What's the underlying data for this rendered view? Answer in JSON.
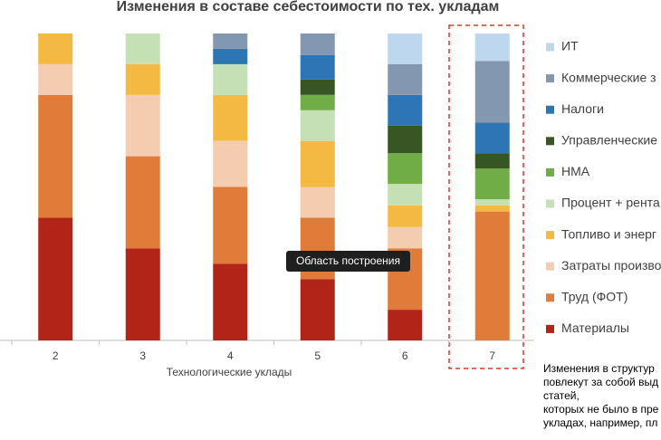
{
  "chart_data": {
    "type": "stacked_bar",
    "title": "Изменения в составе себестоимости по тех. укладам",
    "x_label": "Технологические уклады",
    "categories": [
      "2",
      "3",
      "4",
      "5",
      "6",
      "7"
    ],
    "ylim": [
      0,
      100
    ],
    "series": [
      {
        "name": "Материалы",
        "color": "#b22418",
        "values": [
          40,
          30,
          25,
          20,
          10,
          0
        ]
      },
      {
        "name": "Труд (ФОТ)",
        "color": "#e07b39",
        "values": [
          40,
          30,
          25,
          20,
          20,
          42
        ]
      },
      {
        "name": "Затраты произво",
        "color": "#f4ccb0",
        "values": [
          10,
          20,
          15,
          10,
          7,
          0
        ]
      },
      {
        "name": "Топливо и энерг",
        "color": "#f4b942",
        "values": [
          10,
          10,
          15,
          15,
          7,
          2
        ]
      },
      {
        "name": "Процент + рента",
        "color": "#c5e0b4",
        "values": [
          0,
          10,
          10,
          10,
          7,
          2
        ]
      },
      {
        "name": "НМА",
        "color": "#70ad47",
        "values": [
          0,
          0,
          0,
          5,
          10,
          10
        ]
      },
      {
        "name": "Управленческие",
        "color": "#375623",
        "values": [
          0,
          0,
          0,
          5,
          9,
          5
        ]
      },
      {
        "name": "Налоги",
        "color": "#2e75b6",
        "values": [
          0,
          0,
          5,
          8,
          10,
          10
        ]
      },
      {
        "name": "Коммерческие з",
        "color": "#8497b0",
        "values": [
          0,
          0,
          5,
          7,
          10,
          20
        ]
      },
      {
        "name": "ИТ",
        "color": "#bdd7ee",
        "values": [
          0,
          0,
          0,
          0,
          10,
          9
        ]
      }
    ],
    "tooltip": "Область построения",
    "annotation": [
      "Изменения в структур",
      "повлекут за собой выд",
      "статей,",
      "которых не было в пре",
      "укладах, например, пл"
    ]
  }
}
